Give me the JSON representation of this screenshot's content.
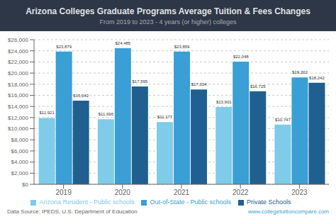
{
  "chart_data": {
    "type": "bar",
    "title": "Arizona Colleges Graduate Programs Average Tuition & Fees Changes",
    "subtitle": "From 2019 to 2023 - 4 years (or higher) colleges",
    "categories": [
      "2019",
      "2020",
      "2021",
      "2022",
      "2023"
    ],
    "series": [
      {
        "name": "Arizona Resident - Public schools",
        "color": "#7eccea",
        "values": [
          11921,
          11696,
          11177,
          13901,
          10747
        ],
        "value_labels": [
          "$11,921",
          "$11,696",
          "$11,177",
          "$13,901",
          "$10,747"
        ]
      },
      {
        "name": "Out-of-State - Public schools",
        "color": "#3a9fd4",
        "values": [
          23879,
          24485,
          23859,
          22048,
          19202
        ],
        "value_labels": [
          "$23,879",
          "$24,485",
          "$23,859",
          "$22,048",
          "$19,202"
        ]
      },
      {
        "name": "Private Schools",
        "color": "#1f6090",
        "values": [
          15042,
          17595,
          17034,
          16725,
          18242
        ],
        "value_labels": [
          "$15,042",
          "$17,595",
          "$17,034",
          "$16,725",
          "$18,242"
        ]
      }
    ],
    "ylim": [
      0,
      26000
    ],
    "yticks": [
      {
        "value": 0,
        "label": "$0"
      },
      {
        "value": 2000,
        "label": "$2,000"
      },
      {
        "value": 4000,
        "label": "$4,000"
      },
      {
        "value": 6000,
        "label": "$6,000"
      },
      {
        "value": 8000,
        "label": "$8,000"
      },
      {
        "value": 10000,
        "label": "$10,000"
      },
      {
        "value": 12000,
        "label": "$12,000"
      },
      {
        "value": 14000,
        "label": "$14,000"
      },
      {
        "value": 16000,
        "label": "$16,000"
      },
      {
        "value": 18000,
        "label": "$18,000"
      },
      {
        "value": 20000,
        "label": "$20,000"
      },
      {
        "value": 22000,
        "label": "$22,000"
      },
      {
        "value": 24000,
        "label": "$24,000"
      },
      {
        "value": 26000,
        "label": "$26,000"
      }
    ],
    "grid": true,
    "legend": "bottom",
    "data_labels": true,
    "annotations": [
      "Data Source: IPEDS, U.S. Department of Education",
      "www.collegetuitioncompare.com"
    ]
  }
}
